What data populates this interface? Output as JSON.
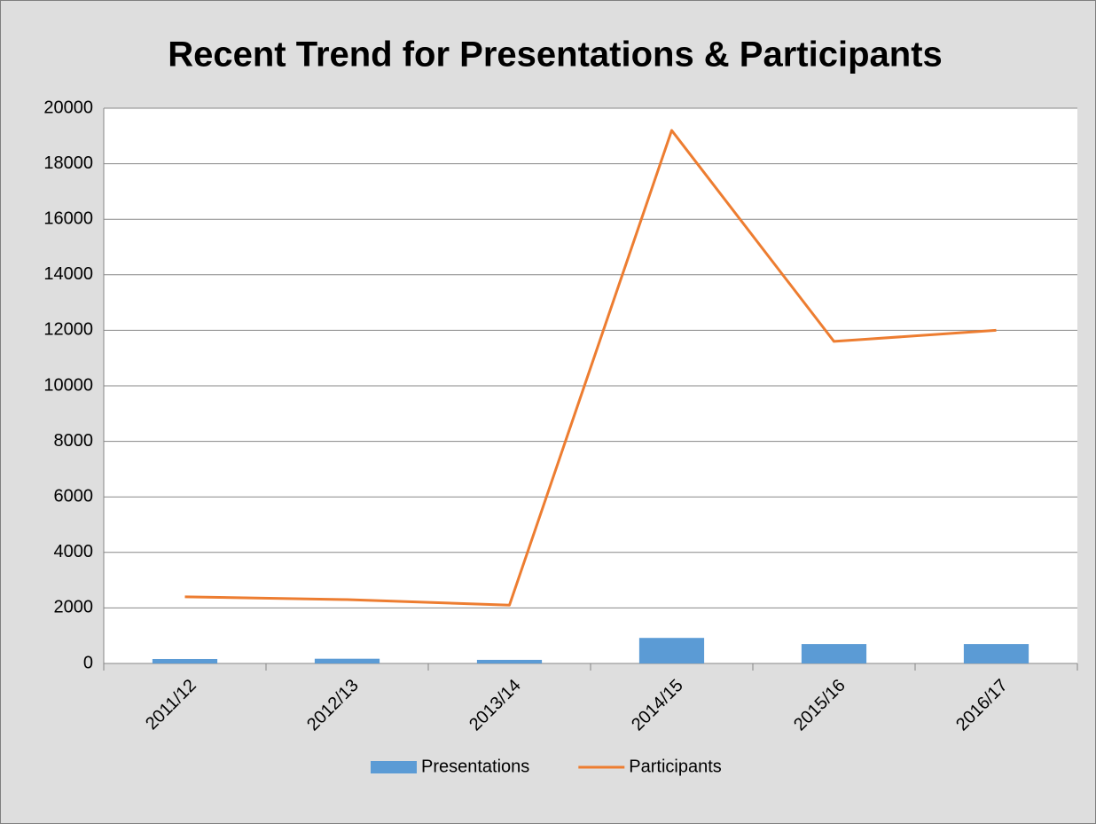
{
  "chart_data": {
    "type": "combo",
    "title": "Recent Trend for Presentations & Participants",
    "categories": [
      "2011/12",
      "2012/13",
      "2013/14",
      "2014/15",
      "2015/16",
      "2016/17"
    ],
    "series": [
      {
        "name": "Presentations",
        "type": "bar",
        "color": "#5b9bd5",
        "values": [
          160,
          170,
          130,
          920,
          700,
          700
        ]
      },
      {
        "name": "Participants",
        "type": "line",
        "color": "#ed7d31",
        "values": [
          2400,
          2300,
          2100,
          19200,
          11600,
          12000
        ]
      }
    ],
    "ylim": [
      0,
      20000
    ],
    "yticks": [
      0,
      2000,
      4000,
      6000,
      8000,
      10000,
      12000,
      14000,
      16000,
      18000,
      20000
    ],
    "grid": true,
    "legend": "bottom"
  }
}
